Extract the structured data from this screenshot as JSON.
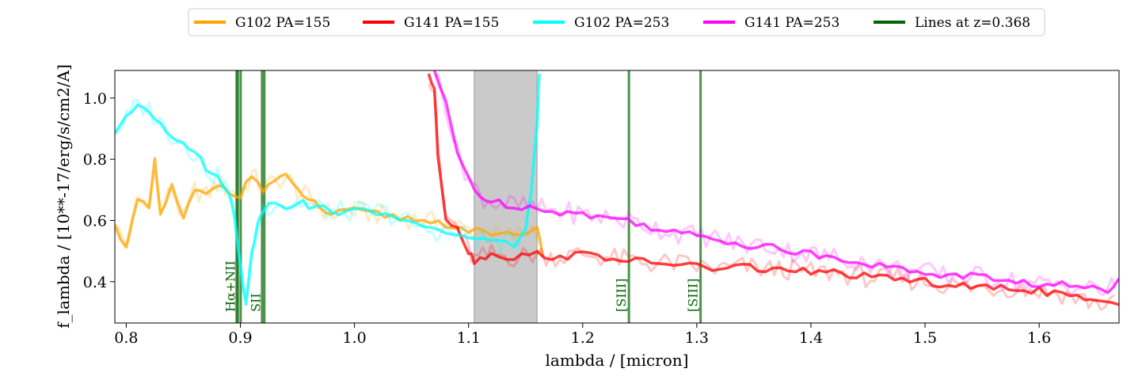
{
  "chart_data": {
    "type": "line",
    "xlabel": "lambda / [micron]",
    "ylabel": "f_lambda / [10**-17/erg/s/cm2/A]",
    "xlim": [
      0.79,
      1.67
    ],
    "ylim": [
      0.265,
      1.09
    ],
    "x_ticks": [
      "0.8",
      "0.9",
      "1.0",
      "1.1",
      "1.2",
      "1.3",
      "1.4",
      "1.5",
      "1.6"
    ],
    "y_ticks": [
      "0.4",
      "0.6",
      "0.8",
      "1.0"
    ],
    "grid": false,
    "legend_placement": "top-center",
    "masked_region": [
      1.105,
      1.16
    ],
    "series": [
      {
        "name": "G102 PA=155",
        "color": "#ffa500",
        "points": [
          [
            0.79,
            0.58
          ],
          [
            0.8,
            0.52
          ],
          [
            0.81,
            0.66
          ],
          [
            0.82,
            0.64
          ],
          [
            0.825,
            0.79
          ],
          [
            0.83,
            0.62
          ],
          [
            0.84,
            0.71
          ],
          [
            0.85,
            0.6
          ],
          [
            0.86,
            0.7
          ],
          [
            0.87,
            0.68
          ],
          [
            0.88,
            0.72
          ],
          [
            0.89,
            0.7
          ],
          [
            0.9,
            0.68
          ],
          [
            0.91,
            0.75
          ],
          [
            0.92,
            0.7
          ],
          [
            0.93,
            0.73
          ],
          [
            0.94,
            0.74
          ],
          [
            0.95,
            0.7
          ],
          [
            0.96,
            0.67
          ],
          [
            0.97,
            0.64
          ],
          [
            0.98,
            0.62
          ],
          [
            1.0,
            0.63
          ],
          [
            1.02,
            0.62
          ],
          [
            1.04,
            0.61
          ],
          [
            1.06,
            0.6
          ],
          [
            1.08,
            0.59
          ],
          [
            1.1,
            0.57
          ],
          [
            1.12,
            0.55
          ],
          [
            1.14,
            0.55
          ],
          [
            1.16,
            0.58
          ],
          [
            1.165,
            0.48
          ]
        ]
      },
      {
        "name": "G141 PA=155",
        "color": "#ff0000",
        "points": [
          [
            1.065,
            1.08
          ],
          [
            1.07,
            1.03
          ],
          [
            1.073,
            0.82
          ],
          [
            1.08,
            0.61
          ],
          [
            1.09,
            0.58
          ],
          [
            1.1,
            0.5
          ],
          [
            1.105,
            0.47
          ],
          [
            1.12,
            0.49
          ],
          [
            1.14,
            0.48
          ],
          [
            1.16,
            0.49
          ],
          [
            1.18,
            0.48
          ],
          [
            1.2,
            0.49
          ],
          [
            1.22,
            0.48
          ],
          [
            1.24,
            0.47
          ],
          [
            1.26,
            0.46
          ],
          [
            1.28,
            0.46
          ],
          [
            1.3,
            0.45
          ],
          [
            1.32,
            0.44
          ],
          [
            1.34,
            0.45
          ],
          [
            1.36,
            0.44
          ],
          [
            1.38,
            0.44
          ],
          [
            1.4,
            0.43
          ],
          [
            1.42,
            0.43
          ],
          [
            1.44,
            0.42
          ],
          [
            1.46,
            0.41
          ],
          [
            1.48,
            0.41
          ],
          [
            1.5,
            0.4
          ],
          [
            1.52,
            0.39
          ],
          [
            1.54,
            0.38
          ],
          [
            1.56,
            0.38
          ],
          [
            1.58,
            0.38
          ],
          [
            1.6,
            0.37
          ],
          [
            1.62,
            0.36
          ],
          [
            1.64,
            0.34
          ],
          [
            1.65,
            0.33
          ],
          [
            1.67,
            0.325
          ]
        ]
      },
      {
        "name": "G102 PA=253",
        "color": "#00ffff",
        "points": [
          [
            0.79,
            0.89
          ],
          [
            0.8,
            0.93
          ],
          [
            0.81,
            0.98
          ],
          [
            0.82,
            0.96
          ],
          [
            0.83,
            0.92
          ],
          [
            0.84,
            0.88
          ],
          [
            0.85,
            0.86
          ],
          [
            0.86,
            0.82
          ],
          [
            0.87,
            0.77
          ],
          [
            0.88,
            0.74
          ],
          [
            0.89,
            0.7
          ],
          [
            0.895,
            0.6
          ],
          [
            0.9,
            0.45
          ],
          [
            0.905,
            0.33
          ],
          [
            0.91,
            0.5
          ],
          [
            0.915,
            0.58
          ],
          [
            0.92,
            0.64
          ],
          [
            0.93,
            0.66
          ],
          [
            0.94,
            0.65
          ],
          [
            0.95,
            0.66
          ],
          [
            0.96,
            0.65
          ],
          [
            0.98,
            0.63
          ],
          [
            1.0,
            0.63
          ],
          [
            1.02,
            0.63
          ],
          [
            1.04,
            0.61
          ],
          [
            1.06,
            0.57
          ],
          [
            1.08,
            0.56
          ],
          [
            1.1,
            0.55
          ],
          [
            1.12,
            0.53
          ],
          [
            1.14,
            0.52
          ],
          [
            1.15,
            0.58
          ],
          [
            1.155,
            0.7
          ],
          [
            1.16,
            0.9
          ],
          [
            1.162,
            1.08
          ]
        ]
      },
      {
        "name": "G141 PA=253",
        "color": "#ff00ff",
        "points": [
          [
            1.07,
            1.09
          ],
          [
            1.08,
            0.98
          ],
          [
            1.09,
            0.82
          ],
          [
            1.1,
            0.74
          ],
          [
            1.11,
            0.68
          ],
          [
            1.12,
            0.66
          ],
          [
            1.14,
            0.65
          ],
          [
            1.16,
            0.64
          ],
          [
            1.18,
            0.63
          ],
          [
            1.2,
            0.62
          ],
          [
            1.22,
            0.61
          ],
          [
            1.24,
            0.6
          ],
          [
            1.26,
            0.58
          ],
          [
            1.28,
            0.56
          ],
          [
            1.3,
            0.55
          ],
          [
            1.32,
            0.54
          ],
          [
            1.34,
            0.52
          ],
          [
            1.36,
            0.52
          ],
          [
            1.38,
            0.5
          ],
          [
            1.4,
            0.49
          ],
          [
            1.42,
            0.48
          ],
          [
            1.44,
            0.47
          ],
          [
            1.46,
            0.45
          ],
          [
            1.48,
            0.44
          ],
          [
            1.5,
            0.43
          ],
          [
            1.52,
            0.42
          ],
          [
            1.54,
            0.42
          ],
          [
            1.56,
            0.41
          ],
          [
            1.58,
            0.4
          ],
          [
            1.6,
            0.39
          ],
          [
            1.62,
            0.39
          ],
          [
            1.64,
            0.38
          ],
          [
            1.66,
            0.37
          ],
          [
            1.67,
            0.41
          ]
        ]
      }
    ],
    "emission_lines": {
      "name": "Lines at z=0.368",
      "color": "#006400",
      "positions": [
        0.8967,
        0.8978,
        0.9003,
        0.919,
        0.921,
        1.2405,
        1.3033
      ],
      "labels": [
        {
          "text": "Hα+NII",
          "x": 0.8978
        },
        {
          "text": "SII",
          "x": 0.92
        },
        {
          "text": "[SIII]",
          "x": 1.2405
        },
        {
          "text": "[SIII]",
          "x": 1.3033
        }
      ]
    }
  }
}
